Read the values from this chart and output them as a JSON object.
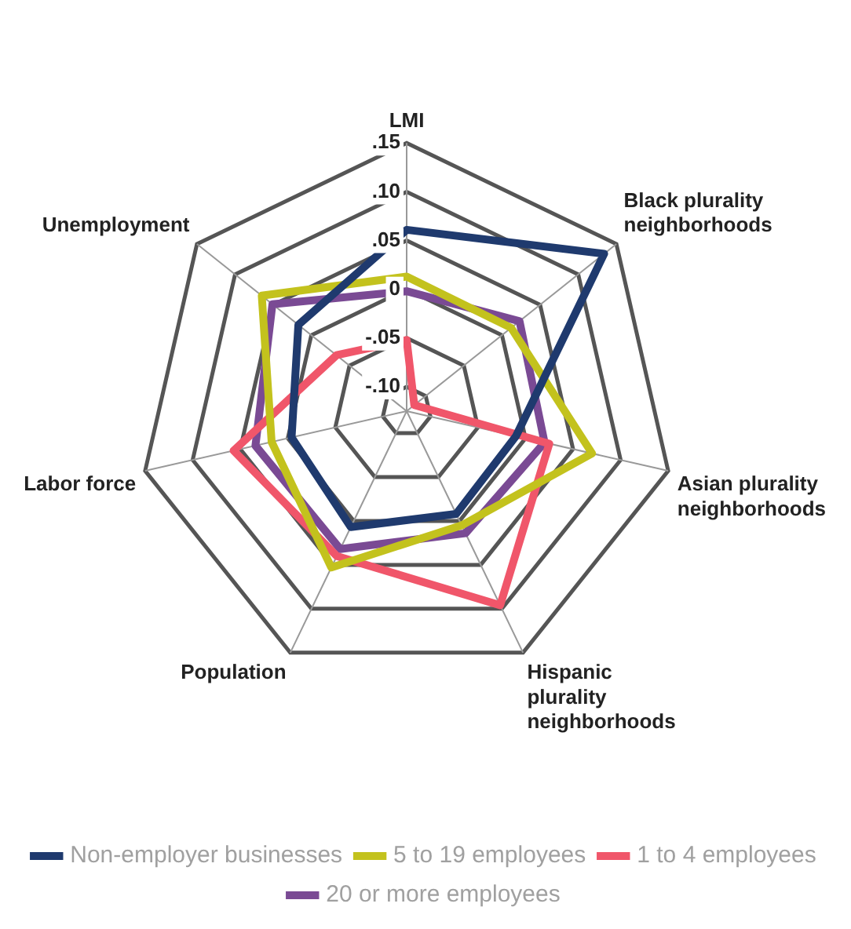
{
  "chart_data": {
    "type": "radar",
    "categories": [
      "LMI",
      "Black plurality neighborhoods",
      "Asian plurality neighborhoods",
      "Hispanic plurality neighborhoods",
      "Population",
      "Labor force",
      "Unemployment"
    ],
    "series": [
      {
        "name": "Non-employer businesses",
        "color": "#1f3a6e",
        "values": [
          0.061,
          0.134,
          -0.01,
          -0.008,
          0.007,
          -0.004,
          0.017
        ]
      },
      {
        "name": "5 to 19 employees",
        "color": "#c3c21d",
        "values": [
          0.013,
          0.012,
          0.07,
          0.005,
          0.053,
          0.017,
          0.065
        ]
      },
      {
        "name": "1 to 4 employees",
        "color": "#f0566a",
        "values": [
          -0.052,
          -0.115,
          0.025,
          0.096,
          0.04,
          0.057,
          -0.033
        ]
      },
      {
        "name": "20 or more employees",
        "color": "#7a4a94",
        "values": [
          -0.002,
          0.023,
          0.02,
          0.014,
          0.032,
          0.034,
          0.051
        ]
      }
    ],
    "ylim": [
      -0.125,
      0.15
    ],
    "yticks": [
      {
        "value": -0.1,
        "label": "-.10"
      },
      {
        "value": -0.05,
        "label": "-.05"
      },
      0,
      {
        "value": 0.05,
        "label": ".05"
      },
      {
        "value": 0.1,
        "label": ".10"
      },
      {
        "value": 0.15,
        "label": ".15"
      }
    ],
    "grid": true,
    "legend": "bottom",
    "marker": "none",
    "line_style": "solid"
  }
}
